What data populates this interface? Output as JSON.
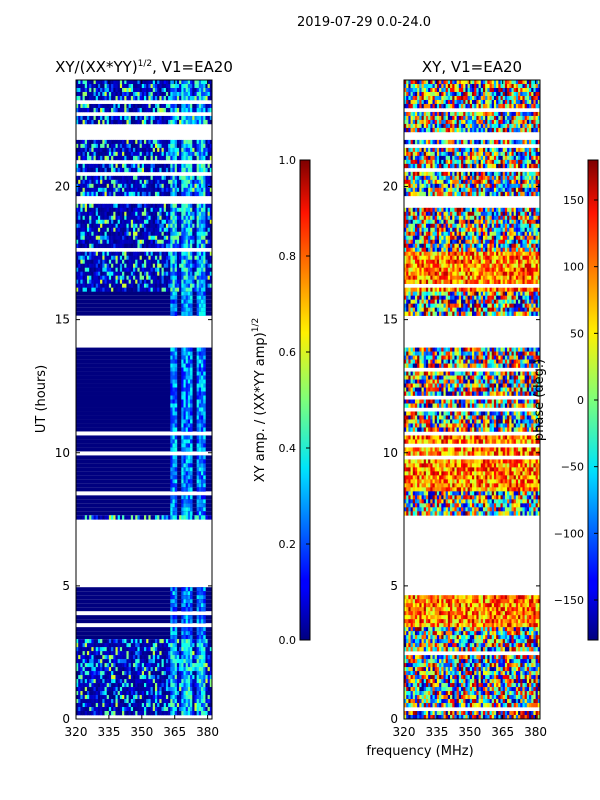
{
  "chart_data": [
    {
      "type": "heatmap",
      "suptitle": "2019-07-29 0.0-24.0",
      "title": "XY/(XX*YY)",
      "title_superscript": "1/2",
      "title_suffix": ", V1=EA20",
      "xlabel": "frequency (MHz)",
      "ylabel": "UT (hours)",
      "xlim": [
        320,
        382
      ],
      "ylim": [
        0,
        24
      ],
      "xticks": [
        320,
        335,
        350,
        365,
        380
      ],
      "yticks": [
        0,
        5,
        10,
        15,
        20
      ],
      "colormap": "jet",
      "colorbar": {
        "label": "XY amp. / (XX*YY amp)",
        "label_superscript": "1/2",
        "range": [
          0.0,
          1.0
        ],
        "ticks": [
          "0.0",
          "0.2",
          "0.4",
          "0.6",
          "0.8",
          "1.0"
        ]
      },
      "flagged_time_ranges_hours": [
        [
          5.0,
          7.5
        ],
        [
          14.0,
          15.2
        ],
        [
          21.7,
          22.0
        ],
        [
          19.3,
          19.6
        ]
      ],
      "low_value_time_ranges_hours": [
        [
          3.0,
          4.9
        ],
        [
          7.6,
          14.0
        ],
        [
          15.2,
          16.0
        ],
        [
          21.8,
          22.3
        ]
      ],
      "noisy_time_ranges_hours": [
        [
          0.0,
          3.0
        ],
        [
          16.0,
          21.7
        ],
        [
          22.3,
          24.0
        ]
      ],
      "bright_channel_ranges_mhz": [
        [
          363,
          366
        ],
        [
          368,
          373
        ],
        [
          375,
          379
        ]
      ]
    },
    {
      "type": "heatmap",
      "title": "XY, V1=EA20",
      "xlim": [
        320,
        382
      ],
      "ylim": [
        0,
        24
      ],
      "xticks": [
        320,
        335,
        350,
        365,
        380
      ],
      "yticks": [
        0,
        5,
        10,
        15,
        20
      ],
      "colormap": "jet",
      "colorbar": {
        "label": "phase (deg.)",
        "range": [
          -180,
          180
        ],
        "ticks": [
          "150",
          "100",
          "50",
          "0",
          "−50",
          "−100",
          "−150"
        ],
        "tick_values": [
          150,
          100,
          50,
          0,
          -50,
          -100,
          -150
        ]
      },
      "flagged_time_ranges_hours": [
        [
          5.0,
          7.5
        ],
        [
          14.0,
          15.2
        ],
        [
          21.7,
          22.0
        ],
        [
          19.3,
          19.6
        ]
      ],
      "warm_phase_time_ranges_hours": [
        [
          3.5,
          4.6
        ],
        [
          8.5,
          10.8
        ],
        [
          16.0,
          17.5
        ]
      ],
      "noisy_time_ranges_hours": [
        [
          0.0,
          3.0
        ],
        [
          11.0,
          14.0
        ],
        [
          17.5,
          24.0
        ]
      ]
    }
  ]
}
